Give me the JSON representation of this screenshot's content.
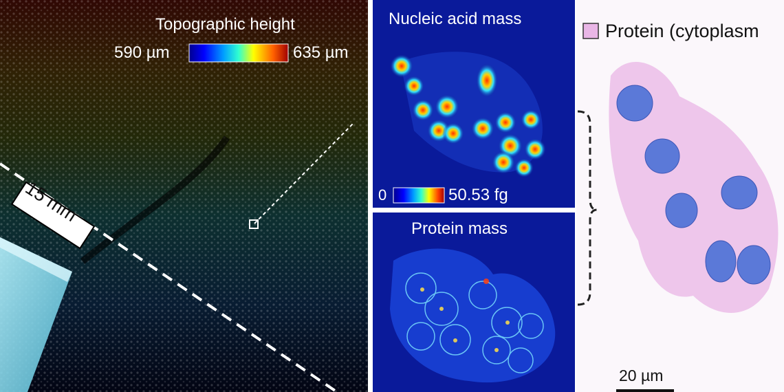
{
  "left_panel": {
    "title": "Topographic height",
    "scale_min": "590 µm",
    "scale_max": "635 µm",
    "distance_label": "15 mm"
  },
  "nucleic_panel": {
    "title": "Nucleic acid mass",
    "scale_min": "0",
    "scale_max": "50.53 fg"
  },
  "protein_panel": {
    "title": "Protein mass"
  },
  "right_panel": {
    "legend_label": "Protein (cytoplasm",
    "scale_bar_label": "20 µm"
  },
  "colors": {
    "jet": [
      "#00008f",
      "#0000ff",
      "#00a0ff",
      "#30ffd0",
      "#ffff00",
      "#ff6000",
      "#a00000"
    ],
    "panel_blue": "#0a1a9a",
    "cytoplasm_pink": "#e9b6e6",
    "nucleus_blue": "#5b79d8"
  }
}
